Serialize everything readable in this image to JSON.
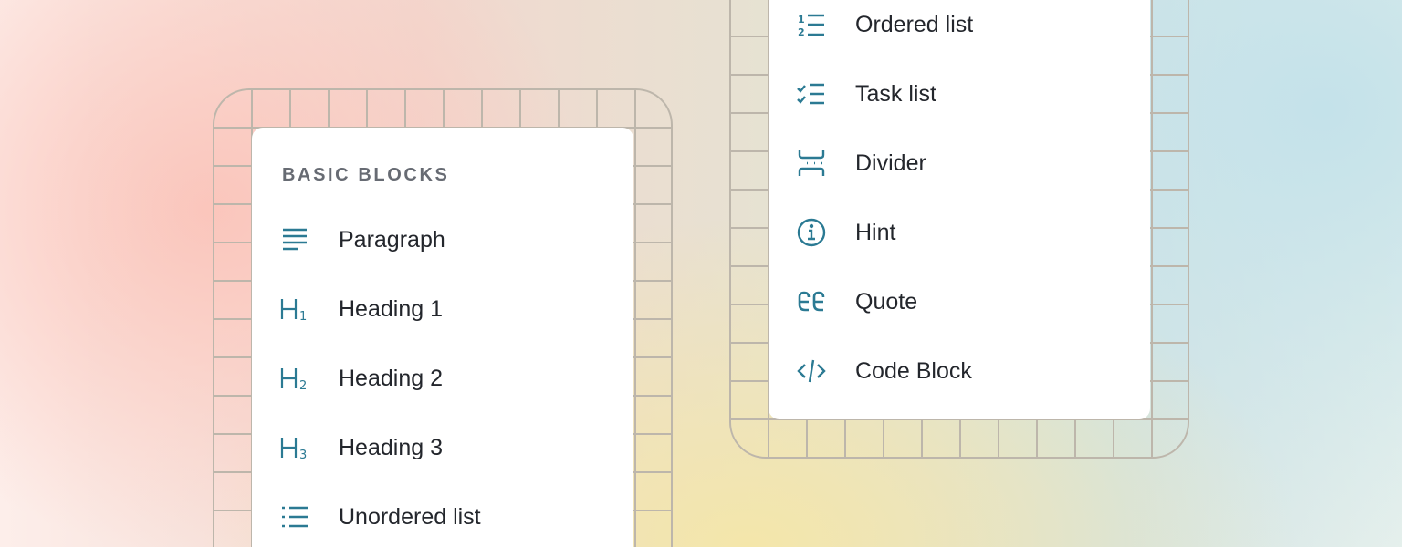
{
  "left_menu": {
    "heading": "BASIC BLOCKS",
    "items": [
      {
        "label": "Paragraph",
        "icon": "paragraph-icon"
      },
      {
        "label": "Heading 1",
        "icon": "heading-1-icon"
      },
      {
        "label": "Heading 2",
        "icon": "heading-2-icon"
      },
      {
        "label": "Heading 3",
        "icon": "heading-3-icon"
      },
      {
        "label": "Unordered list",
        "icon": "unordered-list-icon"
      }
    ]
  },
  "right_menu": {
    "items": [
      {
        "label": "Ordered list",
        "icon": "ordered-list-icon"
      },
      {
        "label": "Task list",
        "icon": "task-list-icon"
      },
      {
        "label": "Divider",
        "icon": "divider-icon"
      },
      {
        "label": "Hint",
        "icon": "info-icon"
      },
      {
        "label": "Quote",
        "icon": "quote-icon"
      },
      {
        "label": "Code Block",
        "icon": "code-icon"
      }
    ]
  },
  "colors": {
    "icon": "#2b7a93",
    "text": "#23262c",
    "grid": "#bdb6ab"
  }
}
